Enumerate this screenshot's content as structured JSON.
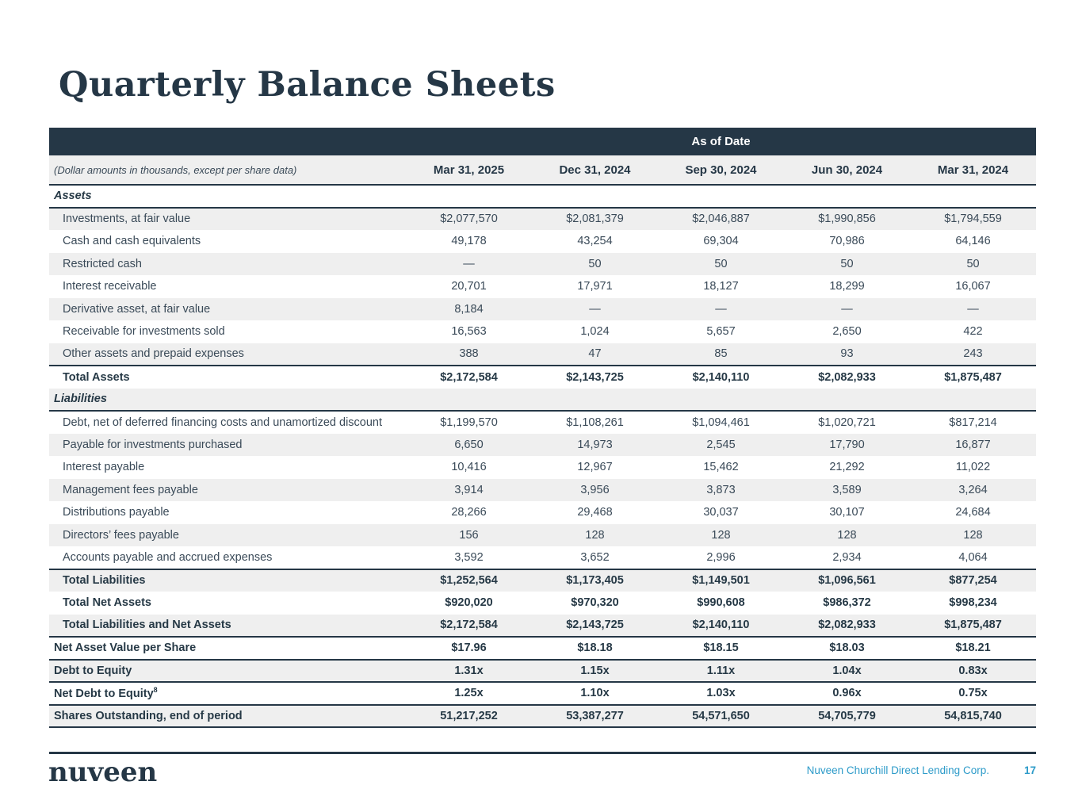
{
  "title": "Quarterly Balance Sheets",
  "colors": {
    "navy": "#253746",
    "stripe_gray": "#efefef",
    "footer_blue": "#2d9bc9",
    "body_text": "#3a4a58"
  },
  "table": {
    "header_band": "As of Date",
    "note": "(Dollar amounts in thousands, except per share data)",
    "columns": [
      "Mar 31, 2025",
      "Dec 31, 2024",
      "Sep 30, 2024",
      "Jun 30, 2024",
      "Mar 31, 2024"
    ],
    "rows": [
      {
        "type": "section",
        "label": "Assets",
        "borders": [
          "bottom"
        ],
        "values": [
          "",
          "",
          "",
          "",
          ""
        ]
      },
      {
        "type": "data",
        "label": "Investments, at fair value",
        "values": [
          "$2,077,570",
          "$2,081,379",
          "$2,046,887",
          "$1,990,856",
          "$1,794,559"
        ]
      },
      {
        "type": "data",
        "label": "Cash and cash equivalents",
        "values": [
          "49,178",
          "43,254",
          "69,304",
          "70,986",
          "64,146"
        ]
      },
      {
        "type": "data",
        "label": "Restricted cash",
        "values": [
          "—",
          "50",
          "50",
          "50",
          "50"
        ]
      },
      {
        "type": "data",
        "label": "Interest receivable",
        "values": [
          "20,701",
          "17,971",
          "18,127",
          "18,299",
          "16,067"
        ]
      },
      {
        "type": "data",
        "label": "Derivative asset, at fair value",
        "values": [
          "8,184",
          "—",
          "—",
          "—",
          "—"
        ]
      },
      {
        "type": "data",
        "label": "Receivable for investments sold",
        "values": [
          "16,563",
          "1,024",
          "5,657",
          "2,650",
          "422"
        ]
      },
      {
        "type": "data",
        "label": "Other assets and prepaid expenses",
        "values": [
          "388",
          "47",
          "85",
          "93",
          "243"
        ]
      },
      {
        "type": "total",
        "label": "Total Assets",
        "borders": [
          "top"
        ],
        "values": [
          "$2,172,584",
          "$2,143,725",
          "$2,140,110",
          "$2,082,933",
          "$1,875,487"
        ]
      },
      {
        "type": "section",
        "label": "Liabilities",
        "borders": [
          "bottom"
        ],
        "values": [
          "",
          "",
          "",
          "",
          ""
        ]
      },
      {
        "type": "data",
        "label": "Debt, net of deferred financing costs and unamortized discount",
        "values": [
          "$1,199,570",
          "$1,108,261",
          "$1,094,461",
          "$1,020,721",
          "$817,214"
        ]
      },
      {
        "type": "data",
        "label": "Payable for investments purchased",
        "values": [
          "6,650",
          "14,973",
          "2,545",
          "17,790",
          "16,877"
        ]
      },
      {
        "type": "data",
        "label": "Interest payable",
        "values": [
          "10,416",
          "12,967",
          "15,462",
          "21,292",
          "11,022"
        ]
      },
      {
        "type": "data",
        "label": "Management fees payable",
        "values": [
          "3,914",
          "3,956",
          "3,873",
          "3,589",
          "3,264"
        ]
      },
      {
        "type": "data",
        "label": "Distributions payable",
        "values": [
          "28,266",
          "29,468",
          "30,037",
          "30,107",
          "24,684"
        ]
      },
      {
        "type": "data",
        "label": "Directors’ fees payable",
        "values": [
          "156",
          "128",
          "128",
          "128",
          "128"
        ]
      },
      {
        "type": "data",
        "label": "Accounts payable and accrued expenses",
        "values": [
          "3,592",
          "3,652",
          "2,996",
          "2,934",
          "4,064"
        ]
      },
      {
        "type": "total",
        "label": "Total Liabilities",
        "borders": [
          "top"
        ],
        "values": [
          "$1,252,564",
          "$1,173,405",
          "$1,149,501",
          "$1,096,561",
          "$877,254"
        ]
      },
      {
        "type": "bold",
        "label": "Total Net Assets",
        "values": [
          "$920,020",
          "$970,320",
          "$990,608",
          "$986,372",
          "$998,234"
        ]
      },
      {
        "type": "bold",
        "label": "Total Liabilities and Net Assets",
        "values": [
          "$2,172,584",
          "$2,143,725",
          "$2,140,110",
          "$2,082,933",
          "$1,875,487"
        ]
      },
      {
        "type": "metric",
        "label": "Net Asset Value per Share",
        "borders": [
          "top"
        ],
        "values": [
          "$17.96",
          "$18.18",
          "$18.15",
          "$18.03",
          "$18.21"
        ]
      },
      {
        "type": "metric",
        "label": "Debt to Equity",
        "borders": [
          "top"
        ],
        "values": [
          "1.31x",
          "1.15x",
          "1.11x",
          "1.04x",
          "0.83x"
        ]
      },
      {
        "type": "metric",
        "label": "Net Debt to Equity",
        "sup": "8",
        "borders": [
          "top"
        ],
        "values": [
          "1.25x",
          "1.10x",
          "1.03x",
          "0.96x",
          "0.75x"
        ]
      },
      {
        "type": "metric",
        "label": "Shares Outstanding, end of period",
        "borders": [
          "top",
          "bottom"
        ],
        "values": [
          "51,217,252",
          "53,387,277",
          "54,571,650",
          "54,705,779",
          "54,815,740"
        ]
      }
    ]
  },
  "footer": {
    "logo": "nuveen",
    "company": "Nuveen Churchill Direct Lending Corp.",
    "page": "17"
  }
}
